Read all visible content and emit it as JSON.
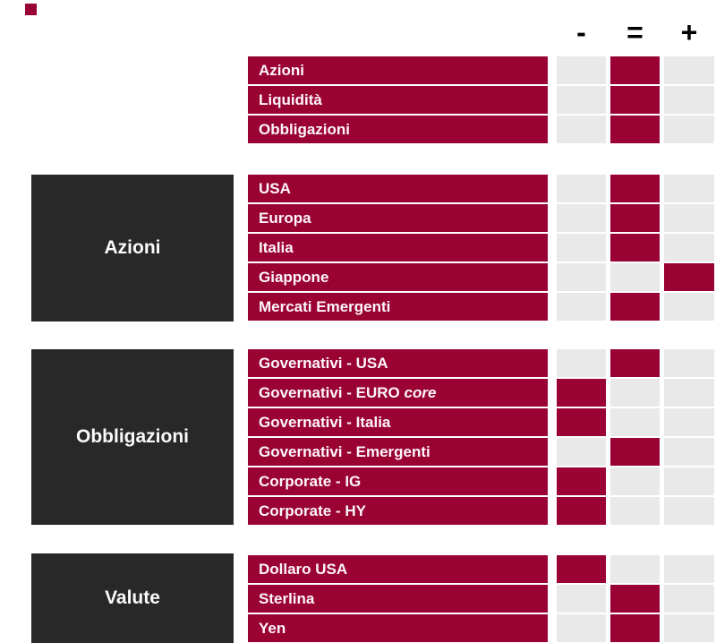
{
  "palette": {
    "maroon": "#9b0234",
    "light_grey": "#e9e9e9",
    "dark_box": "#282828",
    "symbol_black": "#000000",
    "page_bg": "#ffffff"
  },
  "icons": {
    "brand_mark": "maroon-square"
  },
  "legend": {
    "minus_label": "-",
    "equal_label": "=",
    "plus_label": "+"
  },
  "sections": [
    {
      "category": "",
      "rows": [
        {
          "label": "Azioni",
          "stance": "equal"
        },
        {
          "label": "Liquidità",
          "stance": "equal"
        },
        {
          "label": "Obbligazioni",
          "stance": "equal"
        }
      ]
    },
    {
      "category": "Azioni",
      "rows": [
        {
          "label": "USA",
          "stance": "equal"
        },
        {
          "label": "Europa",
          "stance": "equal"
        },
        {
          "label": "Italia",
          "stance": "equal"
        },
        {
          "label": "Giappone",
          "stance": "plus"
        },
        {
          "label": "Mercati Emergenti",
          "stance": "equal"
        }
      ]
    },
    {
      "category": "Obbligazioni",
      "rows": [
        {
          "label": "Governativi - USA",
          "stance": "equal"
        },
        {
          "label": "Governativi - EURO ",
          "label_italic": "core",
          "stance": "minus"
        },
        {
          "label": "Governativi - Italia",
          "stance": "minus"
        },
        {
          "label": "Governativi - Emergenti",
          "stance": "equal"
        },
        {
          "label": "Corporate - IG",
          "stance": "minus"
        },
        {
          "label": "Corporate - HY",
          "stance": "minus"
        }
      ]
    },
    {
      "category": "Valute",
      "rows": [
        {
          "label": "Dollaro USA",
          "stance": "minus"
        },
        {
          "label": "Sterlina",
          "stance": "equal"
        },
        {
          "label": "Yen",
          "stance": "equal"
        }
      ]
    }
  ],
  "chart_data": {
    "type": "heatmap",
    "title": "",
    "columns": [
      "-",
      "=",
      "+"
    ],
    "groups": [
      {
        "group": "",
        "rows": [
          {
            "label": "Azioni",
            "value": "="
          },
          {
            "label": "Liquidità",
            "value": "="
          },
          {
            "label": "Obbligazioni",
            "value": "="
          }
        ]
      },
      {
        "group": "Azioni",
        "rows": [
          {
            "label": "USA",
            "value": "="
          },
          {
            "label": "Europa",
            "value": "="
          },
          {
            "label": "Italia",
            "value": "="
          },
          {
            "label": "Giappone",
            "value": "+"
          },
          {
            "label": "Mercati Emergenti",
            "value": "="
          }
        ]
      },
      {
        "group": "Obbligazioni",
        "rows": [
          {
            "label": "Governativi - USA",
            "value": "="
          },
          {
            "label": "Governativi - EURO core",
            "value": "-"
          },
          {
            "label": "Governativi - Italia",
            "value": "-"
          },
          {
            "label": "Governativi - Emergenti",
            "value": "="
          },
          {
            "label": "Corporate - IG",
            "value": "-"
          },
          {
            "label": "Corporate - HY",
            "value": "-"
          }
        ]
      },
      {
        "group": "Valute",
        "rows": [
          {
            "label": "Dollaro USA",
            "value": "-"
          },
          {
            "label": "Sterlina",
            "value": "="
          },
          {
            "label": "Yen",
            "value": "="
          }
        ]
      }
    ],
    "legend_position": "top-right",
    "cell_on_color": "#9b0234",
    "cell_off_color": "#e9e9e9"
  }
}
